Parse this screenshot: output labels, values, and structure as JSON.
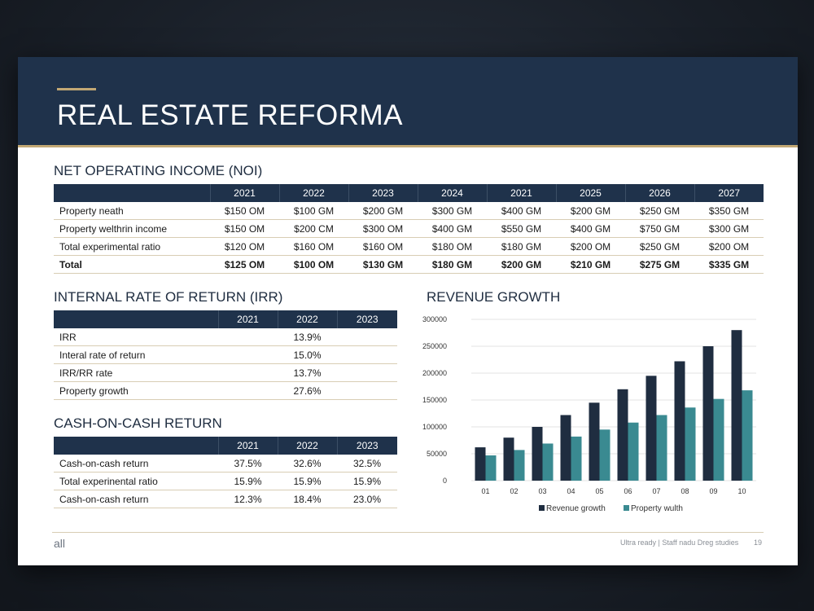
{
  "slide": {
    "title": "REAL ESTATE REFORMA",
    "footer_left": "all",
    "footer_right": "Ultra ready  |  Staff nadu Dreg studies",
    "page_number": "19"
  },
  "noi": {
    "title": "NET OPERATING INCOME (NOI)",
    "headers": [
      "",
      "2021",
      "2022",
      "2023",
      "2024",
      "2021",
      "2025",
      "2026",
      "2027"
    ],
    "rows": [
      {
        "label": "Property neath",
        "values": [
          "$150 OM",
          "$100 GM",
          "$200 GM",
          "$300 GM",
          "$400 GM",
          "$200 GM",
          "$250 GM",
          "$350 GM"
        ]
      },
      {
        "label": "Property welthrin income",
        "values": [
          "$150 OM",
          "$200 CM",
          "$300 OM",
          "$400 GM",
          "$550 GM",
          "$400 GM",
          "$750 GM",
          "$300 GM"
        ]
      },
      {
        "label": "Total experimental ratio",
        "values": [
          "$120 OM",
          "$160 OM",
          "$160 OM",
          "$180 OM",
          "$180 GM",
          "$200 OM",
          "$250 GM",
          "$200 OM"
        ]
      },
      {
        "label": "Total",
        "values": [
          "$125 OM",
          "$100 OM",
          "$130 GM",
          "$180 GM",
          "$200 GM",
          "$210 GM",
          "$275 GM",
          "$335 GM"
        ]
      }
    ]
  },
  "irr": {
    "title": "INTERNAL RATE OF RETURN (IRR)",
    "headers": [
      "",
      "2021",
      "2022",
      "2023"
    ],
    "rows": [
      {
        "label": "IRR",
        "values": [
          "",
          "13.9%",
          ""
        ]
      },
      {
        "label": "Interal rate of return",
        "values": [
          "",
          "15.0%",
          ""
        ]
      },
      {
        "label": "IRR/RR rate",
        "values": [
          "",
          "13.7%",
          ""
        ]
      },
      {
        "label": "Property growth",
        "values": [
          "",
          "27.6%",
          ""
        ]
      }
    ]
  },
  "coc": {
    "title": "CASH-ON-CASH RETURN",
    "headers": [
      "",
      "2021",
      "2022",
      "2023"
    ],
    "rows": [
      {
        "label": "Cash-on-cash return",
        "values": [
          "37.5%",
          "32.6%",
          "32.5%"
        ]
      },
      {
        "label": "Total experinental ratio",
        "values": [
          "15.9%",
          "15.9%",
          "15.9%"
        ]
      },
      {
        "label": "Cash-on-cash return",
        "values": [
          "12.3%",
          "18.4%",
          "23.0%"
        ]
      }
    ]
  },
  "chart_data": {
    "type": "bar",
    "title": "REVENUE GROWTH",
    "categories": [
      "01",
      "02",
      "03",
      "04",
      "05",
      "06",
      "07",
      "08",
      "09",
      "10"
    ],
    "series": [
      {
        "name": "Revenue growth",
        "color": "#1f2d40",
        "values": [
          62000,
          80000,
          100000,
          122000,
          145000,
          170000,
          195000,
          222000,
          250000,
          280000
        ]
      },
      {
        "name": "Property wulth",
        "color": "#3a8a91",
        "values": [
          47000,
          57000,
          69000,
          82000,
          95000,
          108000,
          122000,
          136000,
          152000,
          168000
        ]
      }
    ],
    "yticks": [
      "0",
      "50000",
      "100000",
      "150000",
      "200000",
      "250000",
      "300000"
    ],
    "ylim": [
      0,
      300000
    ],
    "grid": true,
    "legend": "bottom"
  }
}
